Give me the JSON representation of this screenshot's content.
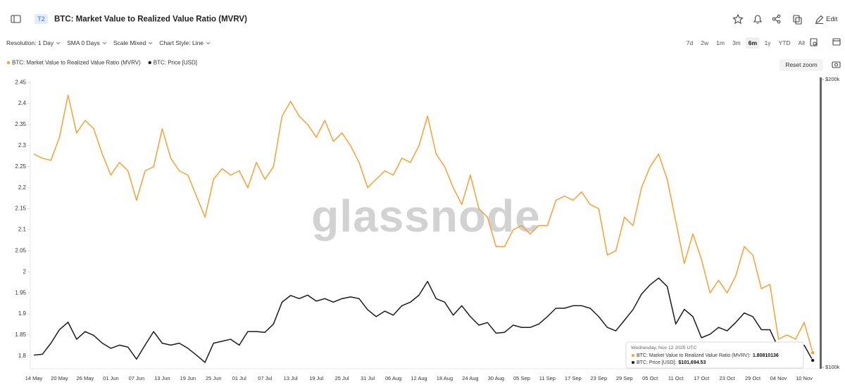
{
  "header": {
    "badge": "T2",
    "edit": "Edit"
  },
  "toolbar": {
    "options": [
      "Resolution: 1 Day",
      "SMA 0 Days",
      "Scale Mixed",
      "Chart Style: Line"
    ],
    "ranges": [
      "7d",
      "2w",
      "1m",
      "3m",
      "6m",
      "1y",
      "YTD",
      "All"
    ],
    "selected_range": "6m",
    "reset": "Reset zoom"
  },
  "watermark": "glassnode",
  "tooltip": {
    "title": "Wednesday, Nov 12 2025 UTC",
    "rows": [
      {
        "label": "BTC: Market Value to Realized Value Ratio (MVRV):",
        "value": "1.80810136"
      },
      {
        "label": "BTC: Price [USD]:",
        "value": "$101,694.53"
      }
    ]
  },
  "chart_data": {
    "type": "line",
    "title": "BTC: Market Value to Realized Value Ratio (MVRV)",
    "categories": [
      "14 May",
      null,
      null,
      "20 May",
      null,
      null,
      "26 May",
      null,
      null,
      "01 Jun",
      null,
      null,
      "07 Jun",
      null,
      null,
      "13 Jun",
      null,
      null,
      "19 Jun",
      null,
      null,
      "25 Jun",
      null,
      null,
      "01 Jul",
      null,
      null,
      "07 Jul",
      null,
      null,
      "13 Jul",
      null,
      null,
      "19 Jul",
      null,
      null,
      "25 Jul",
      null,
      null,
      "31 Jul",
      null,
      null,
      "06 Aug",
      null,
      null,
      "12 Aug",
      null,
      null,
      "18 Aug",
      null,
      null,
      "24 Aug",
      null,
      null,
      "30 Aug",
      null,
      null,
      "05 Sep",
      null,
      null,
      "11 Sep",
      null,
      null,
      "17 Sep",
      null,
      null,
      "23 Sep",
      null,
      null,
      "29 Sep",
      null,
      null,
      "05 Oct",
      null,
      null,
      "11 Oct",
      null,
      null,
      "17 Oct",
      null,
      null,
      "23 Oct",
      null,
      null,
      "29 Oct",
      null,
      null,
      "04 Nov",
      null,
      null,
      "10 Nov",
      null
    ],
    "series": [
      {
        "name": "BTC: Market Value to Realized Value Ratio (MVRV)",
        "color": "#f7a035",
        "values": [
          2.28,
          2.27,
          2.265,
          2.32,
          2.42,
          2.33,
          2.36,
          2.34,
          2.28,
          2.23,
          2.26,
          2.24,
          2.17,
          2.24,
          2.25,
          2.34,
          2.27,
          2.24,
          2.23,
          2.18,
          2.13,
          2.22,
          2.245,
          2.23,
          2.24,
          2.2,
          2.26,
          2.22,
          2.25,
          2.37,
          2.405,
          2.37,
          2.35,
          2.32,
          2.36,
          2.31,
          2.33,
          2.3,
          2.26,
          2.2,
          2.22,
          2.24,
          2.23,
          2.27,
          2.26,
          2.3,
          2.37,
          2.28,
          2.25,
          2.2,
          2.16,
          2.23,
          2.15,
          2.13,
          2.06,
          2.06,
          2.1,
          2.11,
          2.09,
          2.11,
          2.11,
          2.17,
          2.18,
          2.17,
          2.19,
          2.16,
          2.15,
          2.04,
          2.05,
          2.13,
          2.11,
          2.2,
          2.25,
          2.28,
          2.22,
          2.12,
          2.02,
          2.09,
          2.03,
          1.95,
          1.98,
          1.95,
          1.99,
          2.06,
          2.04,
          1.96,
          1.97,
          1.84,
          1.85,
          1.84,
          1.88,
          1.80810136
        ]
      },
      {
        "name": "BTC: Price [USD]",
        "color": "#1a1a1a",
        "axis": "y2",
        "values": [
          103000,
          103200,
          106000,
          109500,
          111500,
          107000,
          109000,
          108000,
          106000,
          104700,
          105500,
          105000,
          102000,
          105500,
          109000,
          106000,
          105500,
          106000,
          104700,
          103000,
          101200,
          106000,
          106500,
          107000,
          105500,
          109000,
          109000,
          108800,
          111000,
          117000,
          118900,
          118000,
          119000,
          117300,
          118000,
          117000,
          118000,
          118500,
          118000,
          114900,
          113000,
          114500,
          113400,
          116000,
          117000,
          119000,
          123000,
          118000,
          117000,
          113400,
          116000,
          113000,
          110700,
          111400,
          108600,
          108800,
          110700,
          110100,
          110100,
          111000,
          113000,
          115300,
          115300,
          116000,
          116000,
          115300,
          113000,
          110100,
          109200,
          112000,
          114900,
          119300,
          122000,
          124000,
          121500,
          111000,
          115000,
          113000,
          107400,
          108300,
          110100,
          109200,
          111400,
          114000,
          113000,
          109500,
          109500,
          104700,
          103800,
          103800,
          105500,
          101694.53
        ]
      }
    ],
    "ylim": [
      1.773,
      2.457
    ],
    "yticks": [
      1.8,
      1.85,
      1.9,
      1.95,
      2,
      2.05,
      2.1,
      2.15,
      2.2,
      2.25,
      2.3,
      2.35,
      2.4,
      2.45
    ],
    "y2lim": [
      100000,
      200000
    ],
    "y2scale": "log",
    "y2ticks": [
      {
        "value": 100000,
        "label": "$100k"
      },
      {
        "value": 200000,
        "label": "$200k"
      }
    ],
    "grid": false
  }
}
